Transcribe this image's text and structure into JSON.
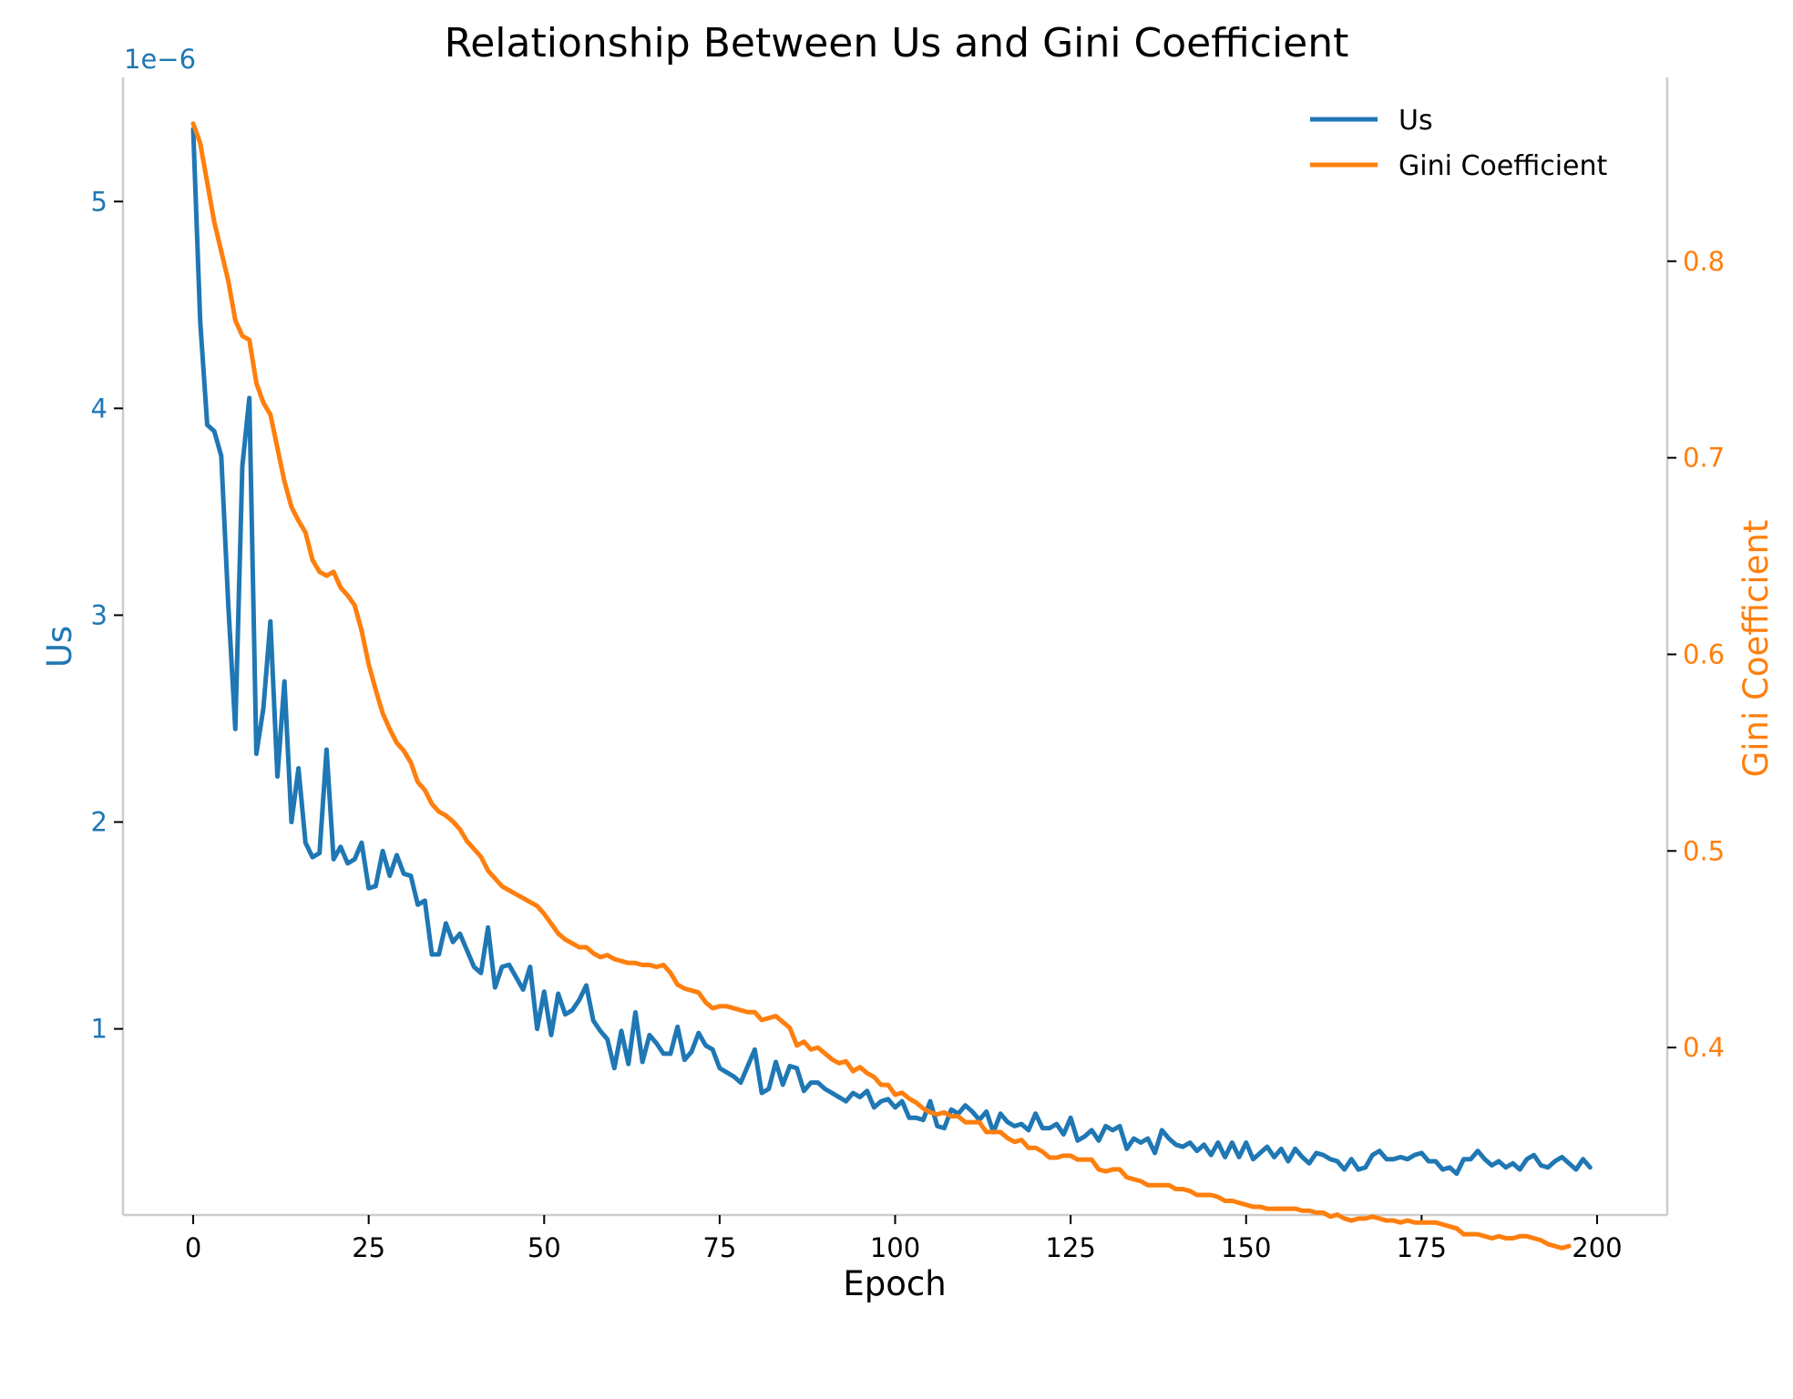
{
  "chart_data": {
    "type": "line",
    "title": "Relationship Between Us and Gini Coefficient",
    "xlabel": "Epoch",
    "ylabel": "Us",
    "y2label": "Gini Coefficient",
    "y_offset_label": "1e−6",
    "xlim": [
      -10,
      210
    ],
    "ylim": [
      1e-07,
      5.6e-06
    ],
    "y2lim": [
      0.3148,
      0.8935
    ],
    "x_ticks": [
      0,
      25,
      50,
      75,
      100,
      125,
      150,
      175,
      200
    ],
    "y_ticks": [
      1,
      2,
      3,
      4,
      5
    ],
    "y_tick_scale": 1e-06,
    "y2_ticks": [
      "0.4",
      "0.5",
      "0.6",
      "0.7",
      "0.8"
    ],
    "legend_position": "top-right",
    "grid": false,
    "colors": {
      "us": "#1f77b4",
      "gini": "#ff7f0e",
      "spine": "#cccccc"
    },
    "series": [
      {
        "name": "Us",
        "axis": "left",
        "x_start": 0,
        "x_step": 1,
        "values": [
          5.35e-06,
          4.42e-06,
          3.92e-06,
          3.89e-06,
          3.77e-06,
          3.05e-06,
          2.45e-06,
          3.72e-06,
          4.05e-06,
          2.33e-06,
          2.55e-06,
          2.97e-06,
          2.22e-06,
          2.68e-06,
          2e-06,
          2.26e-06,
          1.9e-06,
          1.83e-06,
          1.85e-06,
          2.35e-06,
          1.82e-06,
          1.88e-06,
          1.8e-06,
          1.82e-06,
          1.9e-06,
          1.68e-06,
          1.69e-06,
          1.86e-06,
          1.74e-06,
          1.84e-06,
          1.75e-06,
          1.74e-06,
          1.6e-06,
          1.62e-06,
          1.36e-06,
          1.36e-06,
          1.51e-06,
          1.42e-06,
          1.46e-06,
          1.38e-06,
          1.3e-06,
          1.27e-06,
          1.49e-06,
          1.2e-06,
          1.3e-06,
          1.31e-06,
          1.25e-06,
          1.19e-06,
          1.3e-06,
          1e-06,
          1.18e-06,
          9.7e-07,
          1.17e-06,
          1.07e-06,
          1.09e-06,
          1.14e-06,
          1.21e-06,
          1.04e-06,
          9.9e-07,
          9.5e-07,
          8.1e-07,
          9.9e-07,
          8.3e-07,
          1.08e-06,
          8.4e-07,
          9.7e-07,
          9.3e-07,
          8.8e-07,
          8.8e-07,
          1.01e-06,
          8.5e-07,
          8.9e-07,
          9.8e-07,
          9.2e-07,
          9e-07,
          8.1e-07,
          7.9e-07,
          7.7e-07,
          7.4e-07,
          8.2e-07,
          9e-07,
          6.9e-07,
          7.1e-07,
          8.4e-07,
          7.3e-07,
          8.2e-07,
          8.1e-07,
          7e-07,
          7.4e-07,
          7.4e-07,
          7.1e-07,
          6.9e-07,
          6.7e-07,
          6.5e-07,
          6.9e-07,
          6.7e-07,
          7e-07,
          6.2e-07,
          6.5e-07,
          6.6e-07,
          6.2e-07,
          6.5e-07,
          5.7e-07,
          5.7e-07,
          5.6e-07,
          6.5e-07,
          5.3e-07,
          5.2e-07,
          6.1e-07,
          5.9e-07,
          6.3e-07,
          6e-07,
          5.6e-07,
          6e-07,
          5e-07,
          5.9e-07,
          5.5e-07,
          5.3e-07,
          5.4e-07,
          5.1e-07,
          5.9e-07,
          5.2e-07,
          5.2e-07,
          5.4e-07,
          4.9e-07,
          5.7e-07,
          4.6e-07,
          4.8e-07,
          5.1e-07,
          4.6e-07,
          5.3e-07,
          5.1e-07,
          5.3e-07,
          4.2e-07,
          4.7e-07,
          4.5e-07,
          4.7e-07,
          4e-07,
          5.1e-07,
          4.7e-07,
          4.4e-07,
          4.3e-07,
          4.5e-07,
          4.1e-07,
          4.4e-07,
          3.9e-07,
          4.5e-07,
          3.8e-07,
          4.5e-07,
          3.8e-07,
          4.5e-07,
          3.7e-07,
          4e-07,
          4.3e-07,
          3.8e-07,
          4.2e-07,
          3.6e-07,
          4.2e-07,
          3.8e-07,
          3.5e-07,
          4e-07,
          3.9e-07,
          3.7e-07,
          3.6e-07,
          3.2e-07,
          3.7e-07,
          3.2e-07,
          3.3e-07,
          3.9e-07,
          4.1e-07,
          3.7e-07,
          3.7e-07,
          3.8e-07,
          3.7e-07,
          3.9e-07,
          4e-07,
          3.6e-07,
          3.6e-07,
          3.2e-07,
          3.3e-07,
          3e-07,
          3.7e-07,
          3.7e-07,
          4.1e-07,
          3.7e-07,
          3.4e-07,
          3.6e-07,
          3.3e-07,
          3.5e-07,
          3.2e-07,
          3.7e-07,
          3.9e-07,
          3.4e-07,
          3.3e-07,
          3.6e-07,
          3.8e-07,
          3.5e-07,
          3.2e-07,
          3.7e-07,
          3.3e-07
        ]
      },
      {
        "name": "Gini Coefficient",
        "axis": "right",
        "x_start": 0,
        "x_step": 1,
        "values": [
          0.87,
          0.86,
          0.84,
          0.82,
          0.805,
          0.79,
          0.77,
          0.762,
          0.76,
          0.738,
          0.728,
          0.722,
          0.705,
          0.688,
          0.675,
          0.668,
          0.662,
          0.648,
          0.642,
          0.64,
          0.642,
          0.634,
          0.63,
          0.625,
          0.612,
          0.595,
          0.582,
          0.57,
          0.562,
          0.555,
          0.551,
          0.545,
          0.535,
          0.531,
          0.524,
          0.52,
          0.518,
          0.515,
          0.511,
          0.505,
          0.501,
          0.497,
          0.49,
          0.486,
          0.482,
          0.48,
          0.478,
          0.476,
          0.474,
          0.472,
          0.468,
          0.463,
          0.458,
          0.455,
          0.453,
          0.451,
          0.451,
          0.448,
          0.446,
          0.447,
          0.445,
          0.444,
          0.443,
          0.443,
          0.442,
          0.442,
          0.441,
          0.442,
          0.438,
          0.432,
          0.43,
          0.429,
          0.428,
          0.423,
          0.42,
          0.421,
          0.421,
          0.42,
          0.419,
          0.418,
          0.418,
          0.414,
          0.415,
          0.416,
          0.413,
          0.41,
          0.401,
          0.403,
          0.399,
          0.4,
          0.397,
          0.394,
          0.392,
          0.393,
          0.388,
          0.39,
          0.387,
          0.385,
          0.381,
          0.381,
          0.376,
          0.377,
          0.374,
          0.372,
          0.369,
          0.367,
          0.366,
          0.367,
          0.365,
          0.365,
          0.362,
          0.362,
          0.362,
          0.357,
          0.357,
          0.357,
          0.354,
          0.352,
          0.353,
          0.349,
          0.349,
          0.347,
          0.344,
          0.344,
          0.345,
          0.345,
          0.343,
          0.343,
          0.343,
          0.338,
          0.337,
          0.338,
          0.338,
          0.334,
          0.333,
          0.332,
          0.33,
          0.33,
          0.33,
          0.33,
          0.328,
          0.328,
          0.327,
          0.325,
          0.325,
          0.325,
          0.324,
          0.322,
          0.322,
          0.321,
          0.32,
          0.319,
          0.319,
          0.318,
          0.318,
          0.318,
          0.318,
          0.318,
          0.317,
          0.317,
          0.316,
          0.316,
          0.314,
          0.315,
          0.313,
          0.312,
          0.313,
          0.313,
          0.314,
          0.313,
          0.312,
          0.312,
          0.311,
          0.312,
          0.311,
          0.311,
          0.311,
          0.311,
          0.31,
          0.309,
          0.308,
          0.305,
          0.305,
          0.305,
          0.304,
          0.303,
          0.304,
          0.303,
          0.303,
          0.304,
          0.304,
          0.303,
          0.302,
          0.3,
          0.299,
          0.298,
          0.299
        ]
      }
    ]
  }
}
